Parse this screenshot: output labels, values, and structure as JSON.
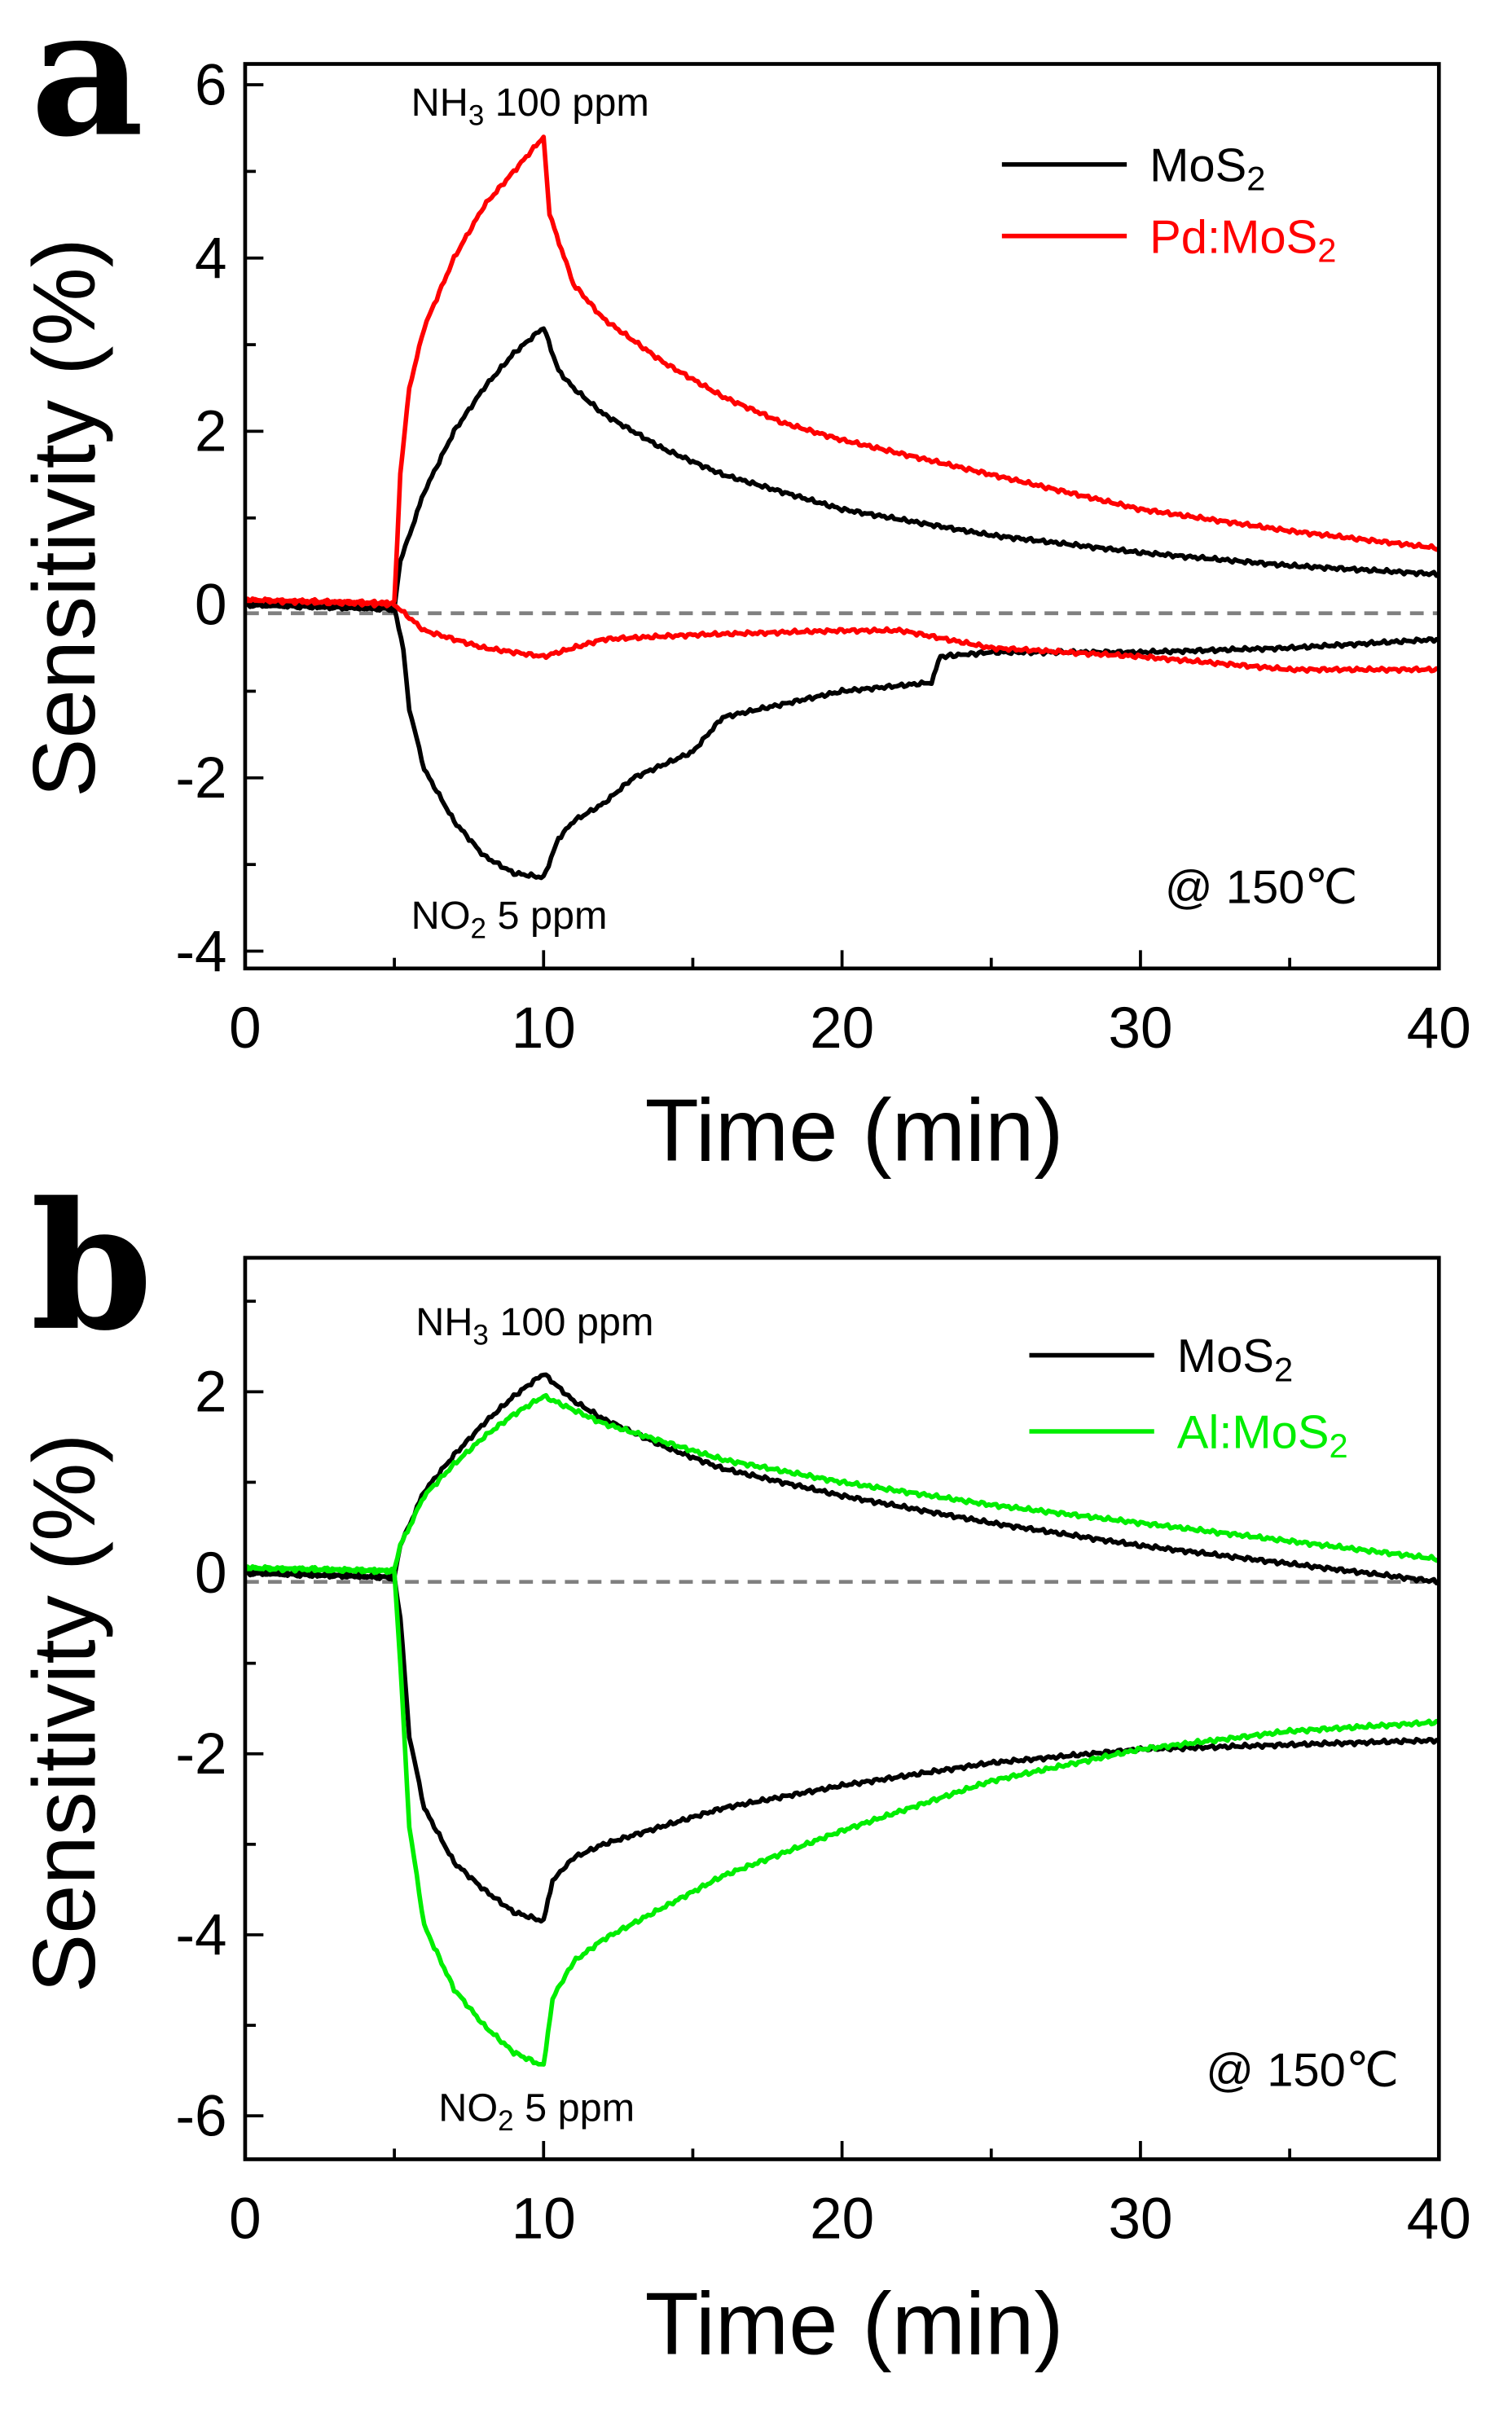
{
  "chart_data": [
    {
      "panel": "a",
      "type": "line",
      "xlabel": "Time (min)",
      "ylabel": "Sensitivity (%)",
      "xlim": [
        0,
        40
      ],
      "ylim": [
        -4.2,
        6.24
      ],
      "xticks": [
        0,
        10,
        20,
        30,
        40
      ],
      "yticks": [
        -4,
        -2,
        0,
        2,
        4,
        6
      ],
      "reference_line": {
        "y": -0.1,
        "style": "dashed",
        "color": "#808080"
      },
      "annotations": {
        "nh3": "NH",
        "nh3_sub": "3",
        "nh3_rest": " 100 ppm",
        "no2": "NO",
        "no2_sub": "2",
        "no2_rest": " 5 ppm",
        "temp": "@ 150℃"
      },
      "legend": [
        {
          "name": "MoS",
          "sub": "2",
          "color": "#000000"
        },
        {
          "name": "Pd:MoS",
          "sub": "2",
          "color": "#ff0000"
        }
      ],
      "legend_position": "top-right",
      "series": [
        {
          "name": "MoS2 NH3",
          "color": "#000000",
          "x": [
            0,
            5,
            5.2,
            6,
            7,
            8,
            9,
            10,
            10.5,
            11,
            12,
            14,
            16,
            18,
            20,
            25,
            30,
            35,
            40
          ],
          "y": [
            0,
            -0.05,
            0.5,
            1.3,
            2.0,
            2.5,
            2.9,
            3.2,
            2.7,
            2.5,
            2.2,
            1.8,
            1.5,
            1.3,
            1.1,
            0.8,
            0.6,
            0.45,
            0.35
          ]
        },
        {
          "name": "Pd:MoS2 NH3",
          "color": "#ff0000",
          "x": [
            0,
            5,
            5.2,
            5.5,
            6,
            7,
            8,
            9,
            10,
            10.2,
            11,
            12,
            14,
            16,
            18,
            20,
            25,
            30,
            35,
            40
          ],
          "y": [
            0.05,
            0.02,
            1.5,
            2.5,
            3.2,
            4.0,
            4.6,
            5.0,
            5.4,
            4.5,
            3.7,
            3.3,
            2.8,
            2.4,
            2.1,
            1.9,
            1.5,
            1.1,
            0.85,
            0.65
          ]
        },
        {
          "name": "MoS2 NO2",
          "color": "#000000",
          "x": [
            0,
            5,
            5.3,
            5.5,
            6,
            7,
            8,
            9,
            10,
            10.5,
            11,
            12,
            13,
            15,
            16,
            20,
            23,
            23.3,
            25,
            30,
            35,
            40
          ],
          "y": [
            0,
            -0.05,
            -0.5,
            -1.2,
            -1.9,
            -2.5,
            -2.9,
            -3.1,
            -3.15,
            -2.7,
            -2.5,
            -2.3,
            -2.0,
            -1.7,
            -1.3,
            -1.0,
            -0.9,
            -0.6,
            -0.55,
            -0.55,
            -0.5,
            -0.4
          ]
        },
        {
          "name": "Pd:MoS2 NO2",
          "color": "#ff0000",
          "x": [
            0,
            5,
            6,
            8,
            10,
            12,
            15,
            20,
            22,
            25,
            30,
            35,
            40
          ],
          "y": [
            0.05,
            0,
            -0.3,
            -0.5,
            -0.6,
            -0.4,
            -0.35,
            -0.3,
            -0.3,
            -0.5,
            -0.6,
            -0.75,
            -0.75
          ]
        }
      ]
    },
    {
      "panel": "b",
      "type": "line",
      "xlabel": "Time (min)",
      "ylabel": "Sensitivity (%)",
      "xlim": [
        0,
        40
      ],
      "ylim": [
        -6.48,
        3.48
      ],
      "xticks": [
        0,
        10,
        20,
        30,
        40
      ],
      "yticks": [
        -6,
        -4,
        -2,
        0,
        2
      ],
      "reference_line": {
        "y": -0.1,
        "style": "dashed",
        "color": "#808080"
      },
      "annotations": {
        "nh3": "NH",
        "nh3_sub": "3",
        "nh3_rest": " 100 ppm",
        "no2": "NO",
        "no2_sub": "2",
        "no2_rest": " 5 ppm",
        "temp": "@ 150℃"
      },
      "legend": [
        {
          "name": "MoS",
          "sub": "2",
          "color": "#000000"
        },
        {
          "name": "Al:MoS",
          "sub": "2",
          "color": "#00ee00"
        }
      ],
      "legend_position": "top-right",
      "series": [
        {
          "name": "MoS2 NH3",
          "color": "#000000",
          "x": [
            0,
            5,
            5.2,
            6,
            7,
            8,
            9,
            10,
            11,
            12,
            14,
            16,
            20,
            25,
            30,
            35,
            40
          ],
          "y": [
            0,
            -0.05,
            0.3,
            0.9,
            1.3,
            1.65,
            1.95,
            2.2,
            1.9,
            1.7,
            1.4,
            1.15,
            0.85,
            0.55,
            0.3,
            0.1,
            -0.1
          ]
        },
        {
          "name": "Al:MoS2 NH3",
          "color": "#00ee00",
          "x": [
            0,
            5,
            5.2,
            6,
            7,
            8,
            9,
            10,
            11,
            12,
            14,
            16,
            20,
            25,
            30,
            35,
            40
          ],
          "y": [
            0.05,
            0.02,
            0.3,
            0.85,
            1.2,
            1.5,
            1.75,
            1.95,
            1.8,
            1.65,
            1.45,
            1.25,
            1.0,
            0.75,
            0.55,
            0.35,
            0.15
          ]
        },
        {
          "name": "MoS2 NO2",
          "color": "#000000",
          "x": [
            0,
            5,
            5.2,
            5.5,
            6,
            7,
            8,
            9,
            10,
            10.3,
            11,
            12,
            14,
            16,
            20,
            25,
            30,
            35,
            40
          ],
          "y": [
            0,
            -0.05,
            -0.5,
            -1.8,
            -2.6,
            -3.2,
            -3.5,
            -3.75,
            -3.85,
            -3.4,
            -3.15,
            -3.0,
            -2.8,
            -2.6,
            -2.35,
            -2.1,
            -1.95,
            -1.9,
            -1.85
          ]
        },
        {
          "name": "Al:MoS2 NO2",
          "color": "#00ee00",
          "x": [
            0,
            5,
            5.2,
            5.5,
            6,
            7,
            8,
            9,
            10,
            10.3,
            11,
            12,
            14,
            16,
            20,
            25,
            30,
            35,
            40
          ],
          "y": [
            0.05,
            0.02,
            -1.0,
            -2.8,
            -3.9,
            -4.6,
            -5.0,
            -5.3,
            -5.45,
            -4.7,
            -4.3,
            -4.05,
            -3.7,
            -3.35,
            -2.85,
            -2.3,
            -1.95,
            -1.75,
            -1.65
          ]
        }
      ]
    }
  ],
  "panel_labels": [
    "a",
    "b"
  ]
}
